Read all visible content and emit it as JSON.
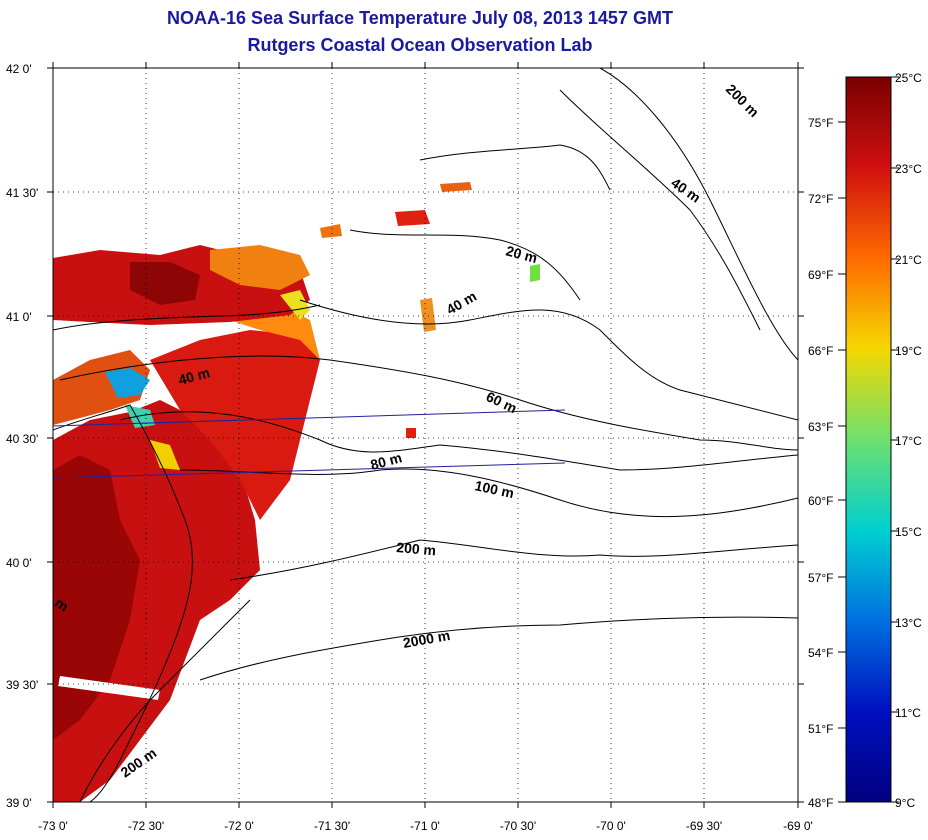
{
  "title": {
    "line1": "NOAA-16 Sea Surface Temperature July 08, 2013 1457 GMT",
    "line2": "Rutgers Coastal Ocean Observation Lab"
  },
  "axes": {
    "lat_labels": [
      "42 0'",
      "41 30'",
      "41 0'",
      "40 30'",
      "40 0'",
      "39 30'",
      "39 0'"
    ],
    "lon_labels": [
      "-73 0'",
      "-72 30'",
      "-72 0'",
      "-71 30'",
      "-71 0'",
      "-70 30'",
      "-70 0'",
      "-69 30'",
      "-69 0'"
    ]
  },
  "contour_labels": [
    "200 m",
    "40 m",
    "20 m",
    "40 m",
    "40 m",
    "60 m",
    "80 m",
    "100 m",
    "200 m",
    "2000 m",
    "200 m",
    "m"
  ],
  "colorbar": {
    "celsius_labels": [
      "25°C",
      "23°C",
      "21°C",
      "19°C",
      "17°C",
      "15°C",
      "13°C",
      "11°C",
      "9°C"
    ],
    "fahrenheit_labels": [
      "75°F",
      "72°F",
      "69°F",
      "66°F",
      "63°F",
      "60°F",
      "57°F",
      "54°F",
      "51°F",
      "48°F"
    ],
    "colors": {
      "c25": "#7a0000",
      "c23": "#d01010",
      "c21": "#ff6a00",
      "c19": "#f5d800",
      "c17": "#6ee06e",
      "c15": "#00d0d0",
      "c13": "#0070e0",
      "c11": "#0010c0",
      "c9": "#000080"
    }
  }
}
